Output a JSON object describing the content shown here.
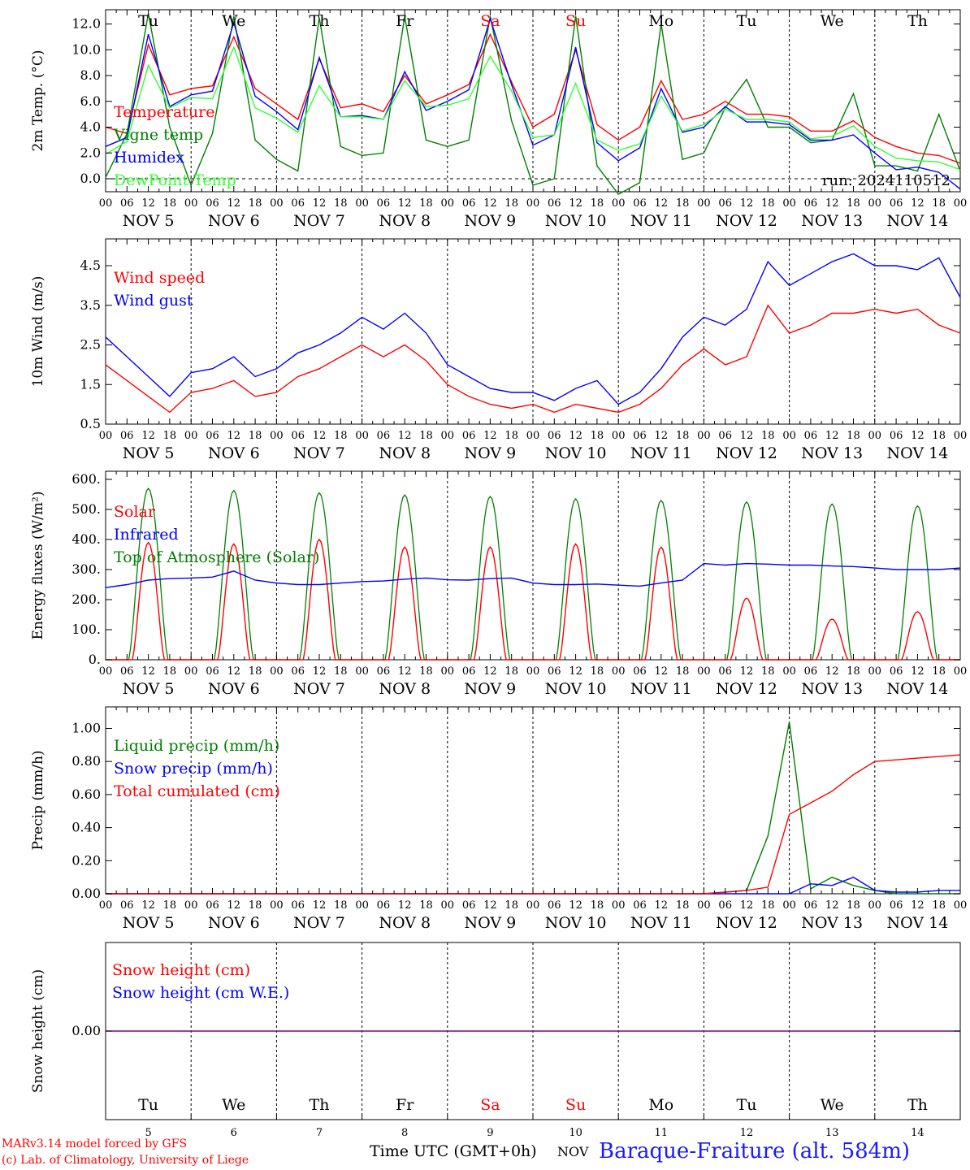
{
  "footer": {
    "model": "MARv3.14 model forced by GFS",
    "credit": "(c) Lab. of Climatology, University of Liege",
    "time_label": "Time UTC (GMT+0h)",
    "month": "NOV",
    "station": "Baraque-Fraiture (alt. 584m)"
  },
  "chart_data": [
    {
      "type": "line",
      "ylabel": "2m Temp. (°C)",
      "ylim": [
        -1,
        13
      ],
      "yticks": [
        "0.0",
        "2.0",
        "4.0",
        "6.0",
        "8.0",
        "10.0",
        "12.0"
      ],
      "annotation": "run: 2024110512",
      "day_names": [
        "Tu",
        "We",
        "Th",
        "Fr",
        "Sa",
        "Su",
        "Mo",
        "Tu",
        "We",
        "Th"
      ],
      "weekend_days": [
        "Sa",
        "Su"
      ],
      "x_hours": [
        "00",
        "06",
        "12",
        "18"
      ],
      "dates": [
        "NOV  5",
        "NOV  6",
        "NOV  7",
        "NOV  8",
        "NOV  9",
        "NOV 10",
        "NOV 11",
        "NOV 12",
        "NOV 13",
        "NOV 14"
      ],
      "x": [
        0,
        6,
        12,
        18,
        24,
        30,
        36,
        42,
        48,
        54,
        60,
        66,
        72,
        78,
        84,
        90,
        96,
        102,
        108,
        114,
        120,
        126,
        132,
        138,
        144,
        150,
        156,
        162,
        168,
        174,
        180,
        186,
        192,
        198,
        204,
        210,
        216,
        222,
        228,
        234,
        240
      ],
      "series": [
        {
          "name": "Temperature",
          "color": "#ff0000",
          "values": [
            4.0,
            3.5,
            10.4,
            6.5,
            7.0,
            7.2,
            11.0,
            7.0,
            5.8,
            4.6,
            9.3,
            5.5,
            5.8,
            5.2,
            8.0,
            5.8,
            6.5,
            7.3,
            11.2,
            7.5,
            4.0,
            5.0,
            10.0,
            4.2,
            3.0,
            4.0,
            7.6,
            4.6,
            5.0,
            6.0,
            5.0,
            5.0,
            4.8,
            3.7,
            3.7,
            4.5,
            3.2,
            2.5,
            2.0,
            1.8,
            1.2
          ]
        },
        {
          "name": "Vigne temp",
          "color": "#008000",
          "values": [
            0.1,
            3.5,
            12.8,
            4.0,
            -0.5,
            3.5,
            12.6,
            3.0,
            1.5,
            0.6,
            12.5,
            2.5,
            1.8,
            2.0,
            12.6,
            3.0,
            2.5,
            3.0,
            12.6,
            4.5,
            -0.5,
            0.0,
            12.6,
            1.0,
            -1.2,
            -0.3,
            12.0,
            1.5,
            2.0,
            5.5,
            7.7,
            4.0,
            4.0,
            2.8,
            3.0,
            6.6,
            1.0,
            1.0,
            0.6,
            5.0,
            0.6
          ]
        },
        {
          "name": "Humidex",
          "color": "#0000ff",
          "values": [
            2.5,
            3.2,
            11.2,
            5.6,
            6.5,
            6.8,
            12.1,
            6.4,
            5.2,
            3.8,
            9.4,
            4.8,
            4.9,
            4.6,
            8.3,
            5.3,
            6.0,
            6.9,
            12.4,
            7.3,
            2.6,
            3.4,
            10.2,
            2.8,
            1.4,
            2.4,
            7.0,
            3.6,
            4.0,
            5.6,
            4.4,
            4.4,
            4.2,
            3.0,
            3.0,
            3.4,
            2.0,
            0.7,
            0.9,
            0.5,
            -0.8
          ]
        },
        {
          "name": "DewPoint Temp",
          "color": "#33ff33",
          "values": [
            1.9,
            2.9,
            8.8,
            5.5,
            6.3,
            6.2,
            10.2,
            5.5,
            4.7,
            3.6,
            7.2,
            4.8,
            4.8,
            4.6,
            7.6,
            5.6,
            5.7,
            6.2,
            9.5,
            6.8,
            3.2,
            3.4,
            7.4,
            3.0,
            2.2,
            2.7,
            6.4,
            3.7,
            4.2,
            5.4,
            4.6,
            4.6,
            4.4,
            3.1,
            3.3,
            4.1,
            2.5,
            1.6,
            1.4,
            1.3,
            0.7
          ]
        }
      ]
    },
    {
      "type": "line",
      "ylabel": "10m Wind (m/s)",
      "ylim": [
        0.5,
        5.0
      ],
      "yticks": [
        "0.5",
        "1.5",
        "2.5",
        "3.5",
        "4.5"
      ],
      "dates": [
        "NOV  5",
        "NOV  6",
        "NOV  7",
        "NOV  8",
        "NOV  9",
        "NOV 10",
        "NOV 11",
        "NOV 12",
        "NOV 13",
        "NOV 14"
      ],
      "x_hours": [
        "00",
        "06",
        "12",
        "18"
      ],
      "x": [
        0,
        6,
        12,
        18,
        24,
        30,
        36,
        42,
        48,
        54,
        60,
        66,
        72,
        78,
        84,
        90,
        96,
        102,
        108,
        114,
        120,
        126,
        132,
        138,
        144,
        150,
        156,
        162,
        168,
        174,
        180,
        186,
        192,
        198,
        204,
        210,
        216,
        222,
        228,
        234,
        240
      ],
      "series": [
        {
          "name": "Wind speed",
          "color": "#ff0000",
          "values": [
            2.0,
            1.6,
            1.2,
            0.8,
            1.3,
            1.4,
            1.6,
            1.2,
            1.3,
            1.7,
            1.9,
            2.2,
            2.5,
            2.2,
            2.5,
            2.1,
            1.5,
            1.2,
            1.0,
            0.9,
            1.0,
            0.8,
            1.0,
            0.9,
            0.8,
            1.0,
            1.4,
            2.0,
            2.4,
            2.0,
            2.2,
            3.5,
            2.8,
            3.0,
            3.3,
            3.3,
            3.4,
            3.3,
            3.4,
            3.0,
            2.8
          ]
        },
        {
          "name": "Wind gust",
          "color": "#0000ff",
          "values": [
            2.7,
            2.2,
            1.7,
            1.2,
            1.8,
            1.9,
            2.2,
            1.7,
            1.9,
            2.3,
            2.5,
            2.8,
            3.2,
            2.9,
            3.3,
            2.8,
            2.0,
            1.7,
            1.4,
            1.3,
            1.3,
            1.1,
            1.4,
            1.6,
            1.0,
            1.3,
            1.9,
            2.7,
            3.2,
            3.0,
            3.4,
            4.6,
            4.0,
            4.3,
            4.6,
            4.8,
            4.5,
            4.5,
            4.4,
            4.7,
            3.7
          ]
        }
      ]
    },
    {
      "type": "line",
      "ylabel": "Energy fluxes (W/m²)",
      "ylim": [
        0,
        600
      ],
      "yticks": [
        "0.",
        "100.",
        "200.",
        "300.",
        "400.",
        "500.",
        "600."
      ],
      "dates": [
        "NOV  5",
        "NOV  6",
        "NOV  7",
        "NOV  8",
        "NOV  9",
        "NOV 10",
        "NOV 11",
        "NOV 12",
        "NOV 13",
        "NOV 14"
      ],
      "x_hours": [
        "00",
        "06",
        "12",
        "18"
      ],
      "x": [
        0,
        6,
        12,
        18,
        24,
        30,
        36,
        42,
        48,
        54,
        60,
        66,
        72,
        78,
        84,
        90,
        96,
        102,
        108,
        114,
        120,
        126,
        132,
        138,
        144,
        150,
        156,
        162,
        168,
        174,
        180,
        186,
        192,
        198,
        204,
        210,
        216,
        222,
        228,
        234,
        240
      ],
      "series": [
        {
          "name": "Solar",
          "color": "#ff0000",
          "peaks": [
            390,
            385,
            400,
            375,
            375,
            385,
            375,
            205,
            135,
            160
          ]
        },
        {
          "name": "Infrared",
          "color": "#0000ff",
          "values": [
            240,
            250,
            265,
            270,
            272,
            275,
            295,
            265,
            255,
            250,
            250,
            255,
            260,
            262,
            268,
            272,
            266,
            265,
            270,
            272,
            255,
            250,
            250,
            252,
            248,
            245,
            255,
            265,
            320,
            315,
            320,
            318,
            315,
            315,
            312,
            310,
            305,
            300,
            300,
            300,
            305
          ]
        },
        {
          "name": "Top of Atmosphere (Solar)",
          "color": "#008000",
          "peaks": [
            570,
            563,
            555,
            548,
            543,
            535,
            530,
            525,
            518,
            512
          ]
        }
      ]
    },
    {
      "type": "line",
      "ylabel": "Precip (mm/h)",
      "ylim": [
        0,
        1.1
      ],
      "yticks": [
        "0.00",
        "0.20",
        "0.40",
        "0.60",
        "0.80",
        "1.00"
      ],
      "dates": [
        "NOV  5",
        "NOV  6",
        "NOV  7",
        "NOV  8",
        "NOV  9",
        "NOV 10",
        "NOV 11",
        "NOV 12",
        "NOV 13",
        "NOV 14"
      ],
      "x_hours": [
        "00",
        "06",
        "12",
        "18"
      ],
      "x": [
        0,
        6,
        12,
        18,
        24,
        30,
        36,
        42,
        48,
        54,
        60,
        66,
        72,
        78,
        84,
        90,
        96,
        102,
        108,
        114,
        120,
        126,
        132,
        138,
        144,
        150,
        156,
        162,
        168,
        174,
        180,
        186,
        192,
        198,
        204,
        210,
        216,
        222,
        228,
        234,
        240
      ],
      "series": [
        {
          "name": "Liquid precip (mm/h)",
          "color": "#008000",
          "values": [
            0,
            0,
            0,
            0,
            0,
            0,
            0,
            0,
            0,
            0,
            0,
            0,
            0,
            0,
            0,
            0,
            0,
            0,
            0,
            0,
            0,
            0,
            0,
            0,
            0,
            0,
            0,
            0,
            0,
            0.01,
            0.02,
            0.35,
            1.04,
            0.03,
            0.1,
            0.05,
            0.02,
            0,
            0,
            0,
            0
          ]
        },
        {
          "name": "Snow precip (mm/h)",
          "color": "#0000ff",
          "values": [
            0,
            0,
            0,
            0,
            0,
            0,
            0,
            0,
            0,
            0,
            0,
            0,
            0,
            0,
            0,
            0,
            0,
            0,
            0,
            0,
            0,
            0,
            0,
            0,
            0,
            0,
            0,
            0,
            0,
            0,
            0,
            0,
            0,
            0.06,
            0.05,
            0.1,
            0.02,
            0.01,
            0.01,
            0.02,
            0.02
          ]
        },
        {
          "name": "Total cumulated (cm)",
          "color": "#ff0000",
          "values": [
            0,
            0,
            0,
            0,
            0,
            0,
            0,
            0,
            0,
            0,
            0,
            0,
            0,
            0,
            0,
            0,
            0,
            0,
            0,
            0,
            0,
            0,
            0,
            0,
            0,
            0,
            0,
            0,
            0,
            0.01,
            0.02,
            0.04,
            0.48,
            0.55,
            0.62,
            0.72,
            0.8,
            0.81,
            0.82,
            0.83,
            0.84
          ]
        }
      ]
    },
    {
      "type": "line",
      "ylabel": "Snow height (cm)",
      "ylim": [
        -1,
        1
      ],
      "yticks": [
        "0.00"
      ],
      "day_names": [
        "Tu",
        "We",
        "Th",
        "Fr",
        "Sa",
        "Su",
        "Mo",
        "Tu",
        "We",
        "Th"
      ],
      "day_numbers": [
        "5",
        "6",
        "7",
        "8",
        "9",
        "10",
        "11",
        "12",
        "13",
        "14"
      ],
      "series": [
        {
          "name": "Snow height (cm)",
          "color": "#ff0000",
          "values": [
            0,
            0
          ]
        },
        {
          "name": "Snow height (cm W.E.)",
          "color": "#0000ff",
          "values": [
            0,
            0
          ]
        }
      ]
    }
  ]
}
